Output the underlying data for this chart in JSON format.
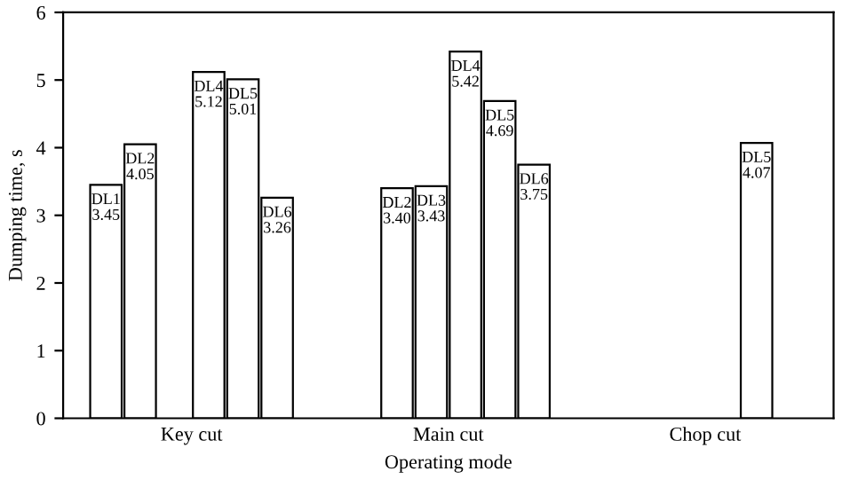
{
  "chart_data": {
    "type": "bar",
    "xlabel": "Operating mode",
    "ylabel": "Dumping time, s",
    "categories": [
      "Key cut",
      "Main cut",
      "Chop cut"
    ],
    "series": [
      {
        "name": "DL1",
        "color": "#ffffff",
        "values": [
          3.45,
          null,
          null
        ],
        "value_labels": [
          "3.45",
          null,
          null
        ]
      },
      {
        "name": "DL2",
        "color": "#ffffff",
        "values": [
          4.05,
          3.4,
          null
        ],
        "value_labels": [
          "4.05",
          "3.40",
          null
        ]
      },
      {
        "name": "DL3",
        "color": "#ffffff",
        "values": [
          null,
          3.43,
          null
        ],
        "value_labels": [
          null,
          "3.43",
          null
        ]
      },
      {
        "name": "DL4",
        "color": "#ffffff",
        "values": [
          5.12,
          5.42,
          null
        ],
        "value_labels": [
          "5.12",
          "5.42",
          null
        ]
      },
      {
        "name": "DL5",
        "color": "#ffffff",
        "values": [
          5.01,
          4.69,
          4.07
        ],
        "value_labels": [
          "5.01",
          "4.69",
          "4.07"
        ]
      },
      {
        "name": "DL6",
        "color": "#ffffff",
        "values": [
          3.26,
          3.75,
          null
        ],
        "value_labels": [
          "3.26",
          "3.75",
          null
        ]
      }
    ],
    "ylim": [
      0,
      6
    ],
    "yticks": [
      0,
      1,
      2,
      3,
      4,
      5,
      6
    ]
  }
}
